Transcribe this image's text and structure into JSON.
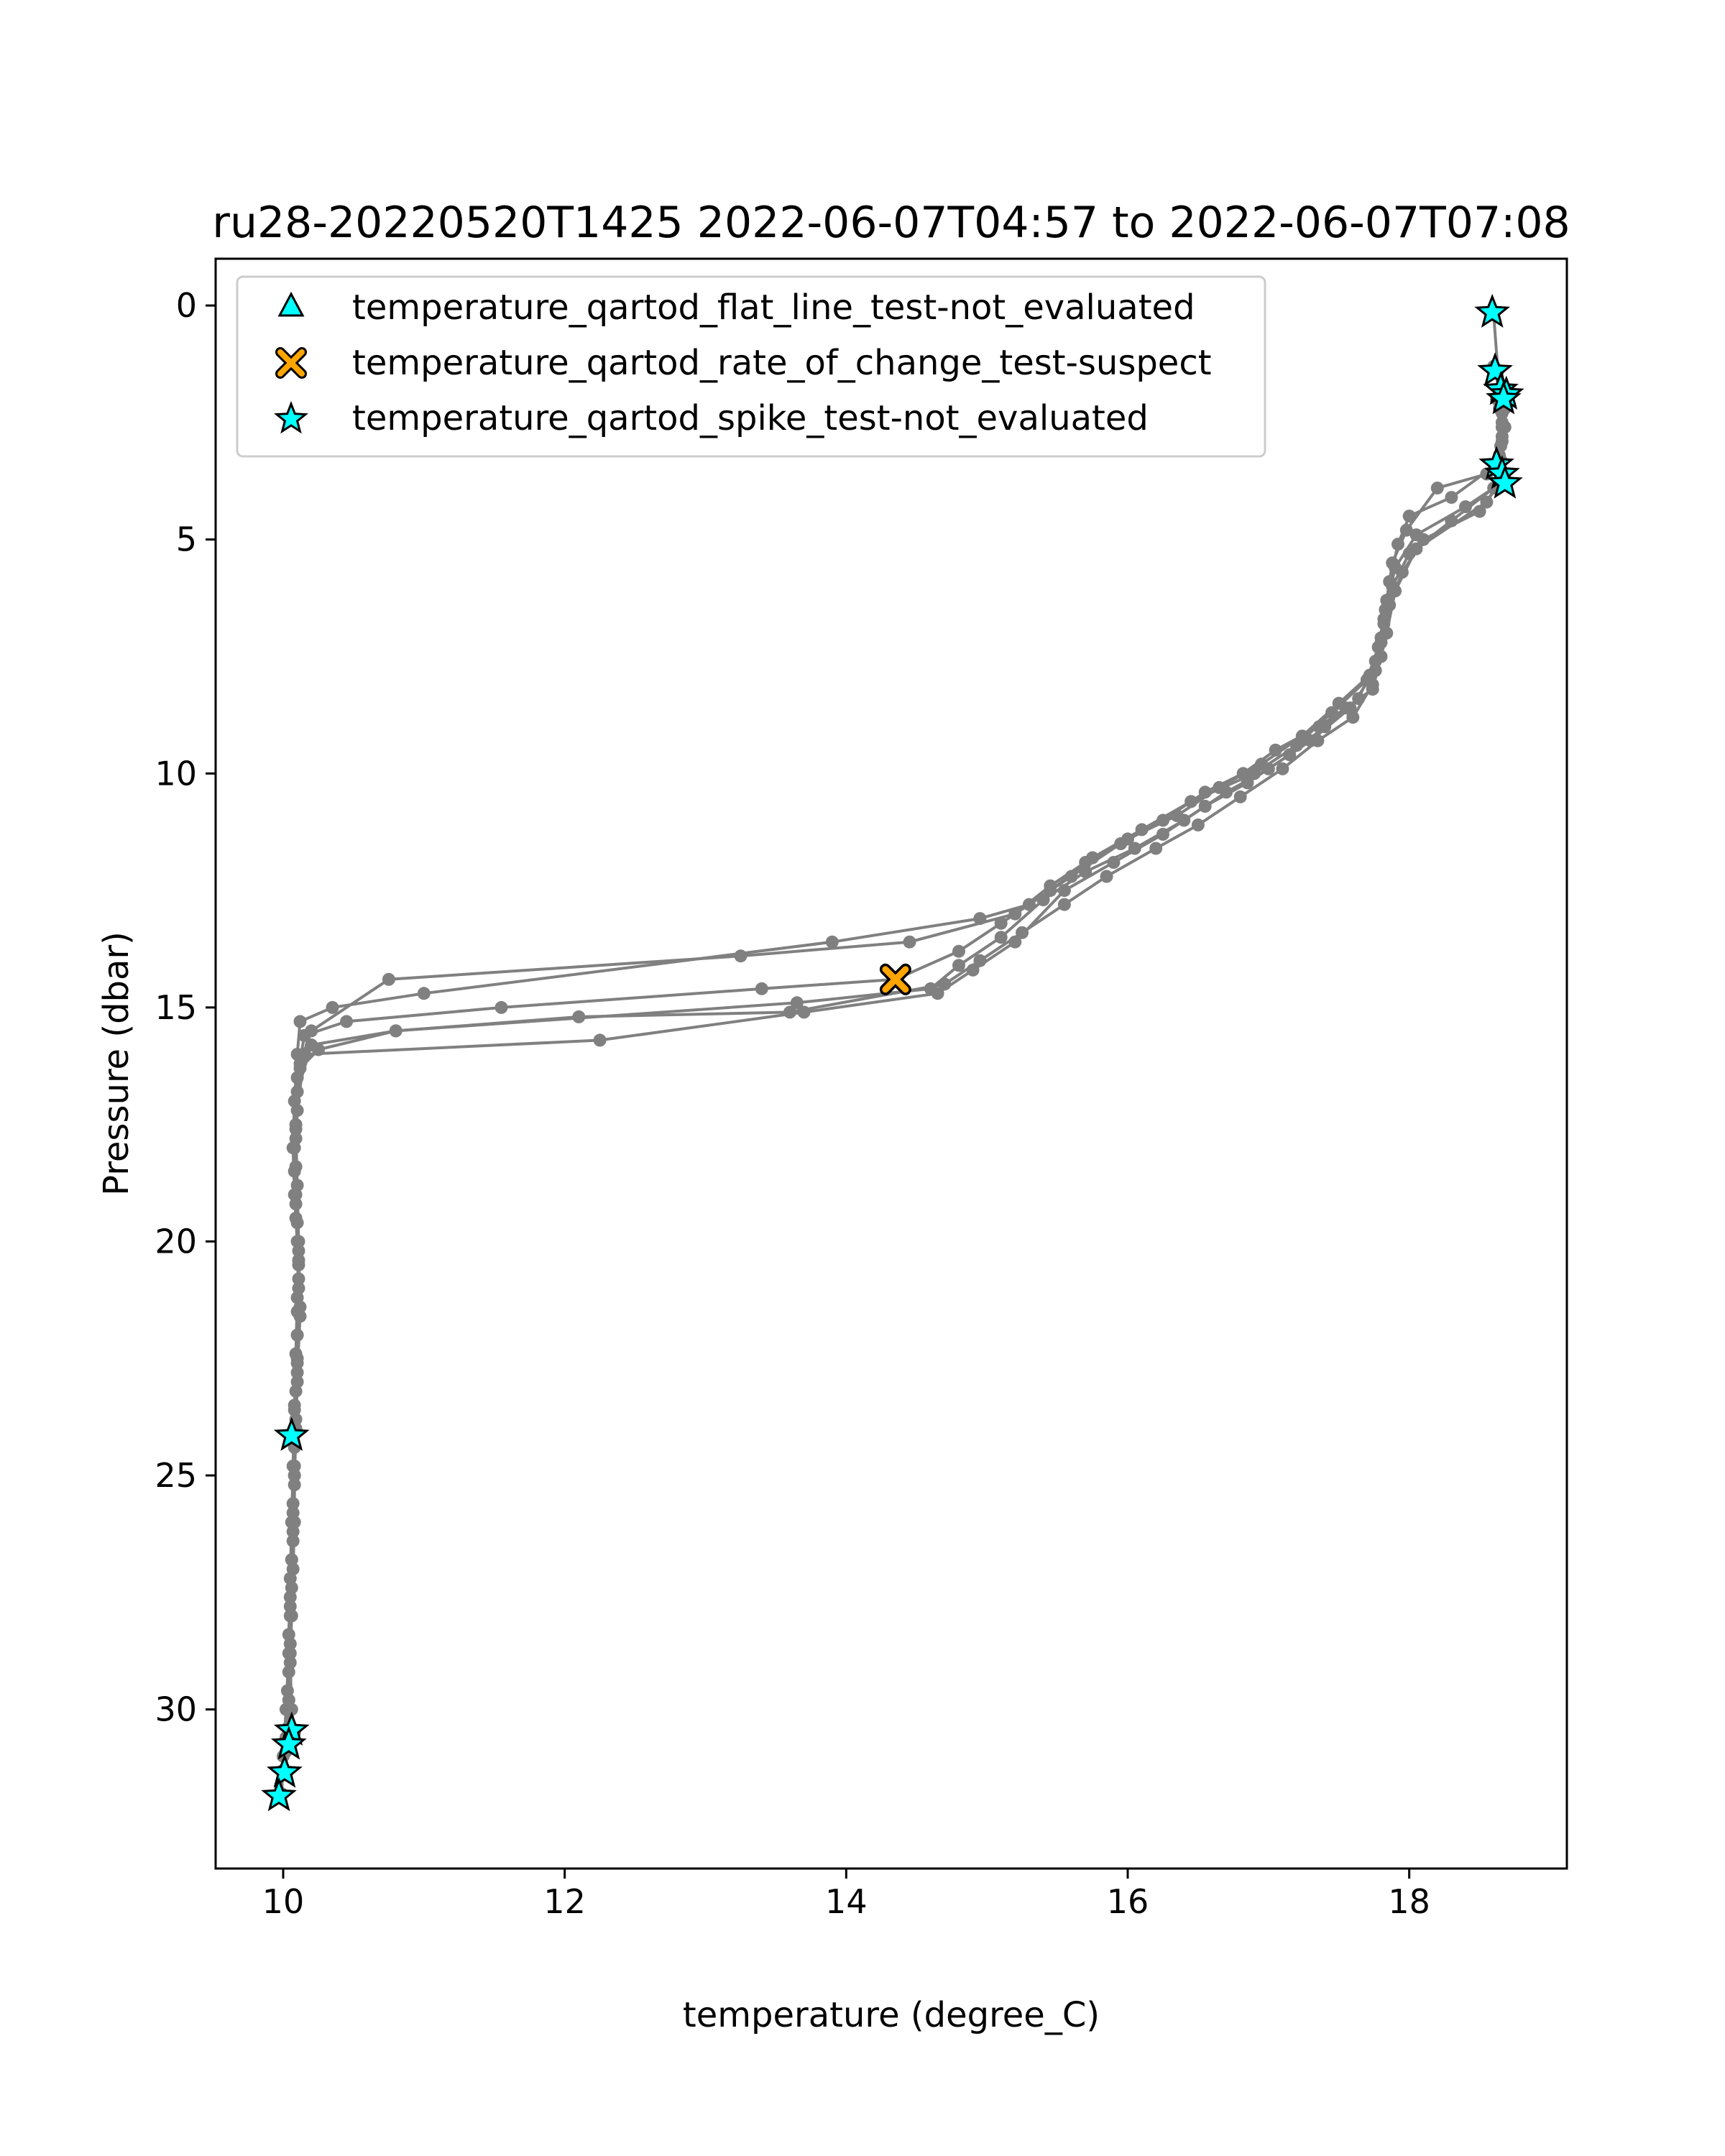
{
  "chart_data": {
    "type": "line",
    "title": "ru28-20220520T1425 2022-06-07T04:57 to 2022-06-07T07:08",
    "xlabel": "temperature (degree_C)",
    "ylabel": "Pressure (dbar)",
    "xlim": [
      9.52,
      19.12
    ],
    "ylim": [
      33.4,
      -1.0
    ],
    "y_inverted": true,
    "grid": false,
    "xticks": [
      10,
      12,
      14,
      16,
      18
    ],
    "yticks": [
      0,
      5,
      10,
      15,
      20,
      25,
      30
    ],
    "line_color": "#808080",
    "legend_position": "top-left",
    "profiles": [
      [
        [
          18.6,
          0.2
        ],
        [
          18.63,
          1.4
        ],
        [
          18.66,
          1.9
        ],
        [
          18.68,
          2.6
        ],
        [
          18.62,
          3.4
        ],
        [
          18.3,
          4.1
        ],
        [
          18.0,
          4.5
        ],
        [
          17.92,
          5.1
        ],
        [
          17.86,
          5.9
        ],
        [
          17.82,
          6.7
        ],
        [
          17.8,
          7.5
        ],
        [
          17.74,
          8.2
        ],
        [
          17.55,
          8.6
        ],
        [
          17.36,
          9.0
        ],
        [
          17.05,
          9.5
        ],
        [
          16.82,
          10.0
        ],
        [
          16.55,
          10.4
        ],
        [
          16.25,
          11.0
        ],
        [
          15.95,
          11.5
        ],
        [
          15.6,
          12.2
        ],
        [
          15.3,
          12.8
        ],
        [
          14.95,
          13.1
        ],
        [
          13.9,
          13.6
        ],
        [
          11.0,
          14.7
        ],
        [
          10.35,
          15.0
        ],
        [
          10.12,
          15.3
        ],
        [
          10.1,
          16.0
        ],
        [
          10.08,
          17.0
        ],
        [
          10.07,
          18.0
        ],
        [
          10.08,
          19.0
        ],
        [
          10.1,
          20.0
        ],
        [
          10.11,
          21.0
        ],
        [
          10.1,
          22.0
        ],
        [
          10.1,
          23.0
        ],
        [
          10.09,
          24.0
        ],
        [
          10.08,
          25.0
        ],
        [
          10.08,
          26.0
        ],
        [
          10.07,
          27.0
        ],
        [
          10.06,
          28.0
        ],
        [
          10.05,
          29.0
        ],
        [
          10.06,
          30.0
        ],
        [
          10.08,
          30.5
        ]
      ],
      [
        [
          18.6,
          1.3
        ],
        [
          18.64,
          1.8
        ],
        [
          18.66,
          2.3
        ],
        [
          18.65,
          3.0
        ],
        [
          18.55,
          3.6
        ],
        [
          18.2,
          3.9
        ],
        [
          17.98,
          4.8
        ],
        [
          17.88,
          5.5
        ],
        [
          17.84,
          6.3
        ],
        [
          17.8,
          7.1
        ],
        [
          17.72,
          7.9
        ],
        [
          17.5,
          8.5
        ],
        [
          17.24,
          9.2
        ],
        [
          16.95,
          9.8
        ],
        [
          16.65,
          10.3
        ],
        [
          16.35,
          10.9
        ],
        [
          16.0,
          11.4
        ],
        [
          15.7,
          11.9
        ],
        [
          15.45,
          12.4
        ],
        [
          15.2,
          13.0
        ],
        [
          14.45,
          13.6
        ],
        [
          13.25,
          13.9
        ],
        [
          10.75,
          14.4
        ],
        [
          10.2,
          15.5
        ],
        [
          10.12,
          16.2
        ],
        [
          10.09,
          17.5
        ],
        [
          10.08,
          18.5
        ],
        [
          10.09,
          19.5
        ],
        [
          10.11,
          20.5
        ],
        [
          10.1,
          21.5
        ],
        [
          10.1,
          22.5
        ],
        [
          10.08,
          23.5
        ],
        [
          10.06,
          24.1
        ],
        [
          10.08,
          24.8
        ],
        [
          10.07,
          25.8
        ],
        [
          10.06,
          26.8
        ],
        [
          10.05,
          27.8
        ],
        [
          10.05,
          28.8
        ],
        [
          10.04,
          29.8
        ],
        [
          10.03,
          30.7
        ]
      ],
      [
        [
          18.66,
          1.8
        ],
        [
          18.68,
          2.2
        ],
        [
          18.66,
          2.8
        ],
        [
          18.6,
          3.5
        ],
        [
          18.65,
          3.8
        ],
        [
          18.4,
          4.3
        ],
        [
          18.05,
          4.9
        ],
        [
          17.9,
          5.6
        ],
        [
          17.83,
          6.5
        ],
        [
          17.78,
          7.3
        ],
        [
          17.7,
          8.0
        ],
        [
          17.45,
          8.7
        ],
        [
          17.2,
          9.4
        ],
        [
          16.9,
          10.0
        ],
        [
          16.45,
          10.6
        ],
        [
          16.1,
          11.2
        ],
        [
          15.75,
          11.8
        ],
        [
          15.45,
          12.5
        ],
        [
          15.1,
          13.2
        ],
        [
          14.8,
          13.8
        ],
        [
          14.35,
          14.4
        ],
        [
          13.4,
          14.6
        ],
        [
          11.55,
          15.0
        ],
        [
          10.45,
          15.3
        ],
        [
          10.15,
          15.6
        ],
        [
          10.1,
          16.5
        ],
        [
          10.09,
          17.8
        ],
        [
          10.09,
          19.0
        ],
        [
          10.11,
          20.2
        ],
        [
          10.12,
          21.4
        ],
        [
          10.1,
          22.6
        ],
        [
          10.09,
          23.8
        ],
        [
          10.08,
          25.0
        ],
        [
          10.07,
          26.2
        ],
        [
          10.06,
          27.4
        ],
        [
          10.05,
          28.6
        ],
        [
          10.04,
          29.8
        ],
        [
          10.02,
          30.9
        ],
        [
          10.0,
          31.3
        ]
      ],
      [
        [
          18.68,
          1.9
        ],
        [
          18.66,
          2.5
        ],
        [
          18.64,
          3.2
        ],
        [
          18.66,
          3.7
        ],
        [
          18.5,
          4.4
        ],
        [
          18.1,
          5.0
        ],
        [
          17.95,
          5.7
        ],
        [
          17.86,
          6.4
        ],
        [
          17.8,
          7.2
        ],
        [
          17.74,
          8.1
        ],
        [
          17.6,
          8.8
        ],
        [
          17.35,
          9.3
        ],
        [
          17.1,
          9.9
        ],
        [
          16.8,
          10.5
        ],
        [
          16.5,
          11.1
        ],
        [
          16.2,
          11.6
        ],
        [
          15.85,
          12.2
        ],
        [
          15.55,
          12.8
        ],
        [
          15.25,
          13.4
        ],
        [
          14.95,
          14.0
        ],
        [
          14.7,
          14.5
        ],
        [
          13.6,
          15.1
        ],
        [
          12.1,
          15.2
        ],
        [
          10.8,
          15.5
        ],
        [
          10.2,
          15.8
        ],
        [
          10.1,
          16.8
        ],
        [
          10.08,
          18.0
        ],
        [
          10.09,
          19.2
        ],
        [
          10.11,
          20.4
        ],
        [
          10.12,
          21.6
        ],
        [
          10.1,
          22.8
        ],
        [
          10.09,
          24.0
        ],
        [
          10.08,
          25.2
        ],
        [
          10.07,
          26.4
        ],
        [
          10.05,
          27.6
        ],
        [
          10.04,
          28.8
        ],
        [
          10.02,
          30.0
        ],
        [
          10.0,
          31.0
        ],
        [
          9.99,
          31.8
        ]
      ],
      [
        [
          18.62,
          2.0
        ],
        [
          18.66,
          2.6
        ],
        [
          18.65,
          3.3
        ],
        [
          18.6,
          3.9
        ],
        [
          18.3,
          4.6
        ],
        [
          18.0,
          5.3
        ],
        [
          17.88,
          6.0
        ],
        [
          17.82,
          6.8
        ],
        [
          17.76,
          7.6
        ],
        [
          17.64,
          8.4
        ],
        [
          17.4,
          9.0
        ],
        [
          17.15,
          9.6
        ],
        [
          16.85,
          10.2
        ],
        [
          16.55,
          10.7
        ],
        [
          16.25,
          11.3
        ],
        [
          15.9,
          11.9
        ],
        [
          15.55,
          12.5
        ],
        [
          15.2,
          13.6
        ],
        [
          14.9,
          14.2
        ],
        [
          14.65,
          14.7
        ],
        [
          13.7,
          15.1
        ],
        [
          12.25,
          15.7
        ],
        [
          10.15,
          16.0
        ],
        [
          10.1,
          17.2
        ],
        [
          10.09,
          18.4
        ],
        [
          10.1,
          19.6
        ],
        [
          10.11,
          20.8
        ],
        [
          10.1,
          22.0
        ],
        [
          10.09,
          23.2
        ],
        [
          10.08,
          24.4
        ],
        [
          10.07,
          25.6
        ],
        [
          10.06,
          26.8
        ],
        [
          10.05,
          28.0
        ],
        [
          10.04,
          29.2
        ],
        [
          10.03,
          30.4
        ],
        [
          10.02,
          31.4
        ]
      ],
      [
        [
          18.64,
          2.2
        ],
        [
          18.66,
          2.9
        ],
        [
          18.68,
          3.6
        ],
        [
          18.55,
          4.2
        ],
        [
          18.05,
          5.2
        ],
        [
          17.9,
          6.1
        ],
        [
          17.84,
          7.0
        ],
        [
          17.76,
          7.8
        ],
        [
          17.58,
          8.6
        ],
        [
          17.3,
          9.3
        ],
        [
          17.0,
          9.9
        ],
        [
          16.7,
          10.4
        ],
        [
          16.4,
          11.0
        ],
        [
          16.05,
          11.6
        ],
        [
          15.7,
          12.1
        ],
        [
          15.4,
          12.7
        ],
        [
          15.1,
          13.5
        ],
        [
          14.8,
          14.1
        ],
        [
          14.6,
          14.6
        ],
        [
          13.65,
          14.9
        ],
        [
          10.8,
          15.5
        ],
        [
          10.25,
          15.9
        ],
        [
          10.12,
          16.3
        ],
        [
          10.09,
          17.6
        ],
        [
          10.1,
          18.8
        ],
        [
          10.11,
          20.0
        ],
        [
          10.1,
          21.2
        ],
        [
          10.09,
          22.4
        ],
        [
          10.08,
          23.6
        ],
        [
          10.07,
          24.8
        ],
        [
          10.06,
          26.0
        ],
        [
          10.05,
          27.2
        ],
        [
          10.04,
          28.4
        ],
        [
          10.03,
          29.6
        ],
        [
          10.02,
          30.6
        ]
      ]
    ],
    "flagged_points": {
      "flat_line_not_evaluated": [],
      "rate_of_change_suspect": [
        [
          14.35,
          14.4
        ]
      ],
      "spike_not_evaluated": [
        [
          18.59,
          0.15
        ],
        [
          18.61,
          1.4
        ],
        [
          18.65,
          1.8
        ],
        [
          18.69,
          1.9
        ],
        [
          18.67,
          2.0
        ],
        [
          18.62,
          3.4
        ],
        [
          18.66,
          3.6
        ],
        [
          18.68,
          3.8
        ],
        [
          10.06,
          24.15
        ],
        [
          10.06,
          30.45
        ],
        [
          10.04,
          30.75
        ],
        [
          10.01,
          31.35
        ],
        [
          9.97,
          31.85
        ]
      ]
    },
    "series": [
      {
        "name": "temperature_qartod_flat_line_test-not_evaluated",
        "marker": "triangle",
        "color": "#00ffff"
      },
      {
        "name": "temperature_qartod_rate_of_change_test-suspect",
        "marker": "x",
        "color": "#ffa500"
      },
      {
        "name": "temperature_qartod_spike_test-not_evaluated",
        "marker": "star",
        "color": "#00ffff"
      }
    ]
  }
}
